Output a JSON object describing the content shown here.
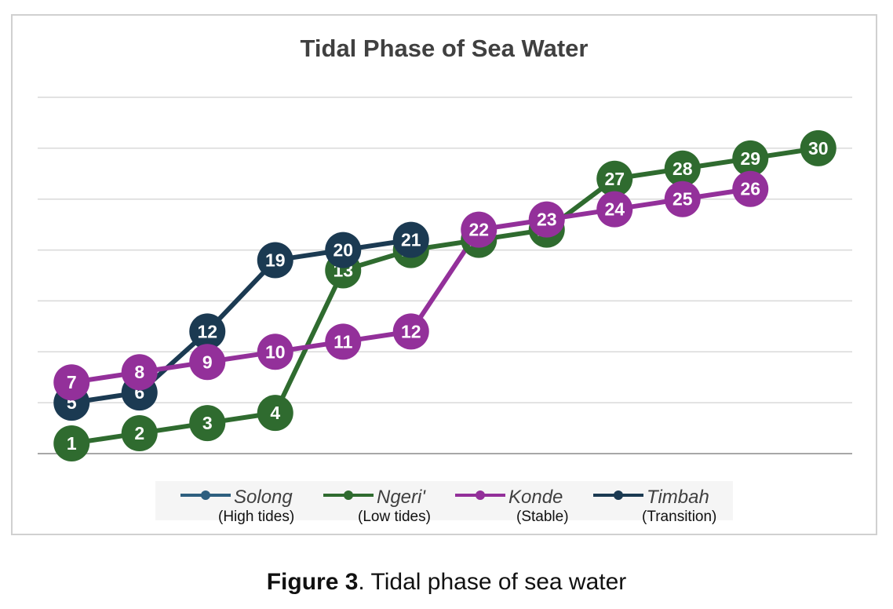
{
  "chart_data": {
    "type": "line",
    "title": "Tidal Phase of Sea Water",
    "xlabel": "",
    "ylabel": "",
    "grid": true,
    "legend_position": "bottom",
    "series": [
      {
        "name": "Solong",
        "subtitle": "(High tides)",
        "color": "#2e5f7f",
        "points": []
      },
      {
        "name": "Ngeri'",
        "subtitle": "(Low tides)",
        "color": "#2f6b2f",
        "points": [
          {
            "x": 1,
            "y": 0.2,
            "label": "1"
          },
          {
            "x": 2,
            "y": 0.4,
            "label": "2"
          },
          {
            "x": 3,
            "y": 0.6,
            "label": "3"
          },
          {
            "x": 4,
            "y": 0.8,
            "label": "4"
          },
          {
            "x": 5,
            "y": 3.6,
            "label": "13"
          },
          {
            "x": 6,
            "y": 4.0,
            "label": "15"
          },
          {
            "x": 7,
            "y": 4.2,
            "label": "16"
          },
          {
            "x": 8,
            "y": 4.4,
            "label": "17"
          },
          {
            "x": 9,
            "y": 5.4,
            "label": "27"
          },
          {
            "x": 10,
            "y": 5.6,
            "label": "28"
          },
          {
            "x": 11,
            "y": 5.8,
            "label": "29"
          },
          {
            "x": 12,
            "y": 6.0,
            "label": "30"
          }
        ]
      },
      {
        "name": "Konde",
        "subtitle": "(Stable)",
        "color": "#93309a",
        "points": [
          {
            "x": 1,
            "y": 1.4,
            "label": "7"
          },
          {
            "x": 2,
            "y": 1.6,
            "label": "8"
          },
          {
            "x": 3,
            "y": 1.8,
            "label": "9"
          },
          {
            "x": 4,
            "y": 2.0,
            "label": "10"
          },
          {
            "x": 5,
            "y": 2.2,
            "label": "11"
          },
          {
            "x": 6,
            "y": 2.4,
            "label": "12"
          },
          {
            "x": 7,
            "y": 4.4,
            "label": "22"
          },
          {
            "x": 8,
            "y": 4.6,
            "label": "23"
          },
          {
            "x": 9,
            "y": 4.8,
            "label": "24"
          },
          {
            "x": 10,
            "y": 5.0,
            "label": "25"
          },
          {
            "x": 11,
            "y": 5.2,
            "label": "26"
          }
        ]
      },
      {
        "name": "Timbah",
        "subtitle": "(Transition)",
        "color": "#1b3a52",
        "points": [
          {
            "x": 1,
            "y": 1.0,
            "label": "5"
          },
          {
            "x": 2,
            "y": 1.2,
            "label": "6"
          },
          {
            "x": 3,
            "y": 2.4,
            "label": "12"
          },
          {
            "x": 4,
            "y": 3.8,
            "label": "19"
          },
          {
            "x": 5,
            "y": 4.0,
            "label": "20"
          },
          {
            "x": 6,
            "y": 4.2,
            "label": "21"
          }
        ]
      }
    ],
    "x_range": [
      0.5,
      12.5
    ],
    "y_range": [
      0,
      7
    ],
    "gridline_count": 7
  },
  "caption": {
    "bold": "Figure 3",
    "text": ". Tidal phase of sea water"
  }
}
